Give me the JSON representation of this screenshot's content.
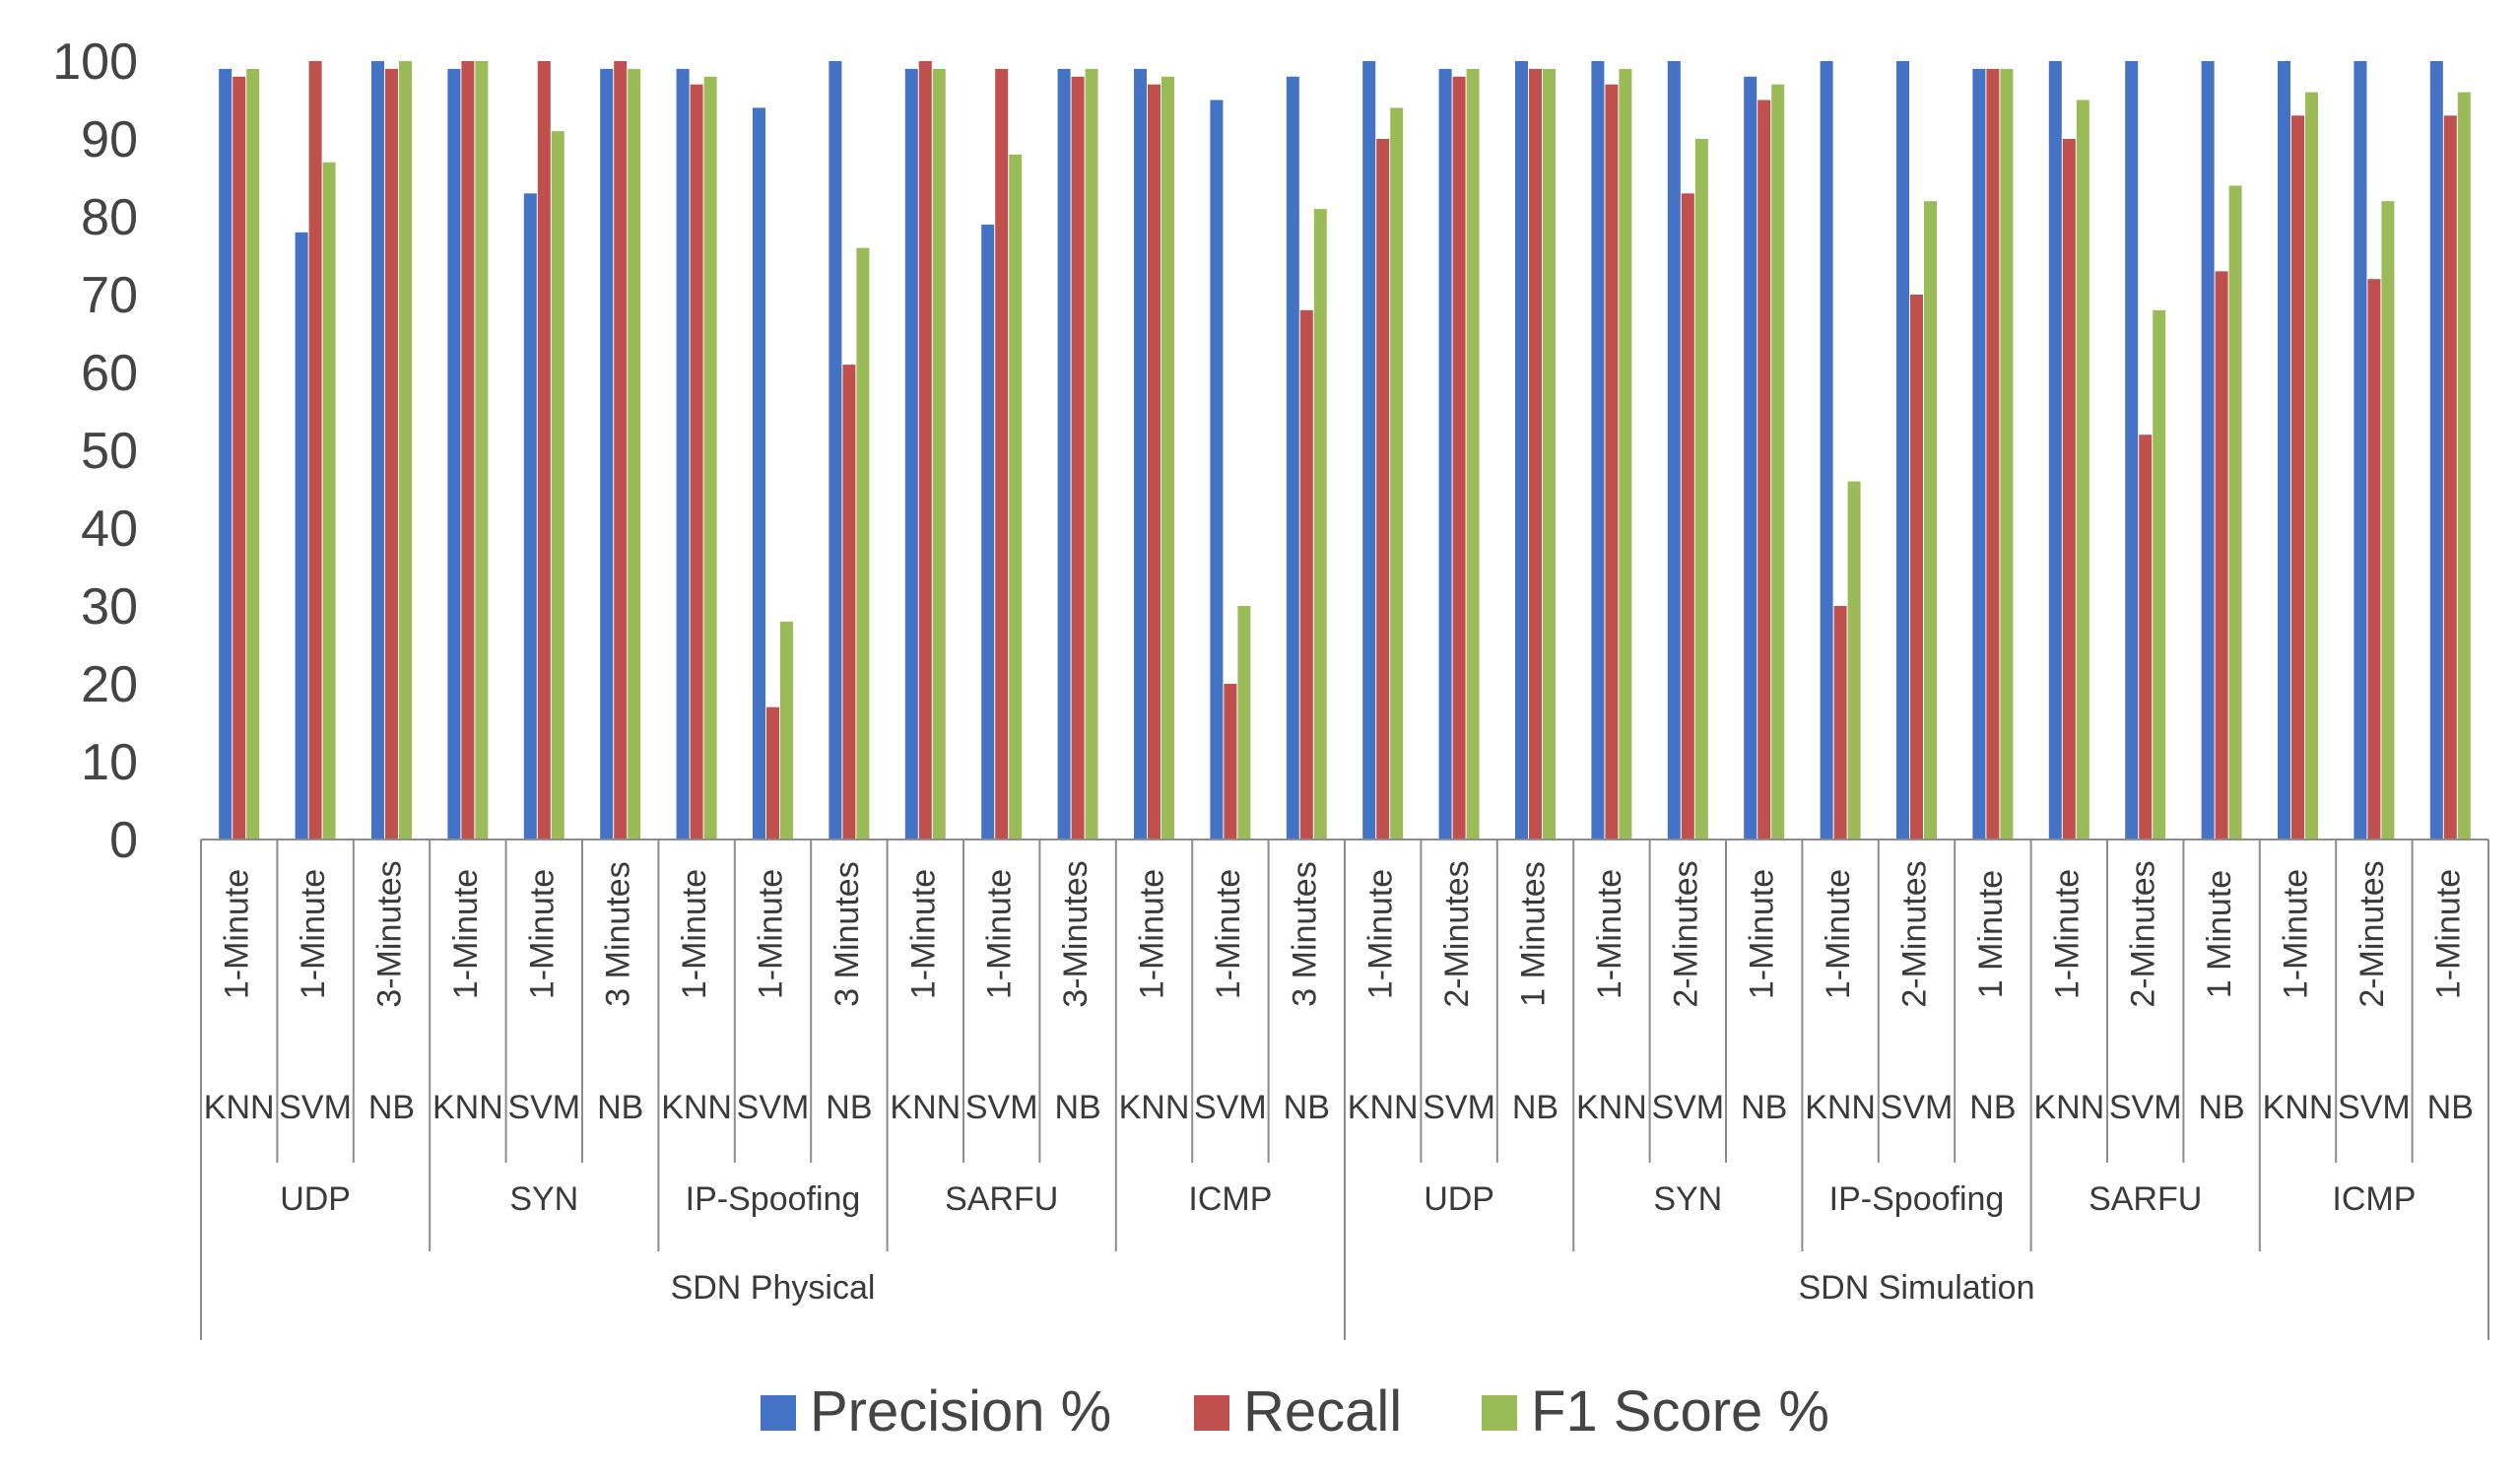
{
  "chart_data": {
    "type": "bar",
    "title": "",
    "xlabel": "",
    "ylabel": "",
    "ylim": [
      0,
      100
    ],
    "yticks": [
      0,
      10,
      20,
      30,
      40,
      50,
      60,
      70,
      80,
      90,
      100
    ],
    "grid": false,
    "legend_position": "bottom",
    "categories": [
      {
        "env": "SDN Physical",
        "attack": "UDP",
        "algo": "KNN",
        "window": "1-Minute"
      },
      {
        "env": "SDN Physical",
        "attack": "UDP",
        "algo": "SVM",
        "window": "1-Minute"
      },
      {
        "env": "SDN Physical",
        "attack": "UDP",
        "algo": "NB",
        "window": "3-Minutes"
      },
      {
        "env": "SDN Physical",
        "attack": "SYN",
        "algo": "KNN",
        "window": "1-Minute"
      },
      {
        "env": "SDN Physical",
        "attack": "SYN",
        "algo": "SVM",
        "window": "1-Minute"
      },
      {
        "env": "SDN Physical",
        "attack": "SYN",
        "algo": "NB",
        "window": "3 Minutes"
      },
      {
        "env": "SDN Physical",
        "attack": "IP-Spoofing",
        "algo": "KNN",
        "window": "1-Minute"
      },
      {
        "env": "SDN Physical",
        "attack": "IP-Spoofing",
        "algo": "SVM",
        "window": "1-Minute"
      },
      {
        "env": "SDN Physical",
        "attack": "IP-Spoofing",
        "algo": "NB",
        "window": "3 Minutes"
      },
      {
        "env": "SDN Physical",
        "attack": "SARFU",
        "algo": "KNN",
        "window": "1-Minute"
      },
      {
        "env": "SDN Physical",
        "attack": "SARFU",
        "algo": "SVM",
        "window": "1-Minute"
      },
      {
        "env": "SDN Physical",
        "attack": "SARFU",
        "algo": "NB",
        "window": "3-Minutes"
      },
      {
        "env": "SDN Physical",
        "attack": "ICMP",
        "algo": "KNN",
        "window": "1-Minute"
      },
      {
        "env": "SDN Physical",
        "attack": "ICMP",
        "algo": "SVM",
        "window": "1-Minute"
      },
      {
        "env": "SDN Physical",
        "attack": "ICMP",
        "algo": "NB",
        "window": "3 Minutes"
      },
      {
        "env": "SDN Simulation",
        "attack": "UDP",
        "algo": "KNN",
        "window": "1-Minute"
      },
      {
        "env": "SDN Simulation",
        "attack": "UDP",
        "algo": "SVM",
        "window": "2-Minutes"
      },
      {
        "env": "SDN Simulation",
        "attack": "UDP",
        "algo": "NB",
        "window": "1 Minutes"
      },
      {
        "env": "SDN Simulation",
        "attack": "SYN",
        "algo": "KNN",
        "window": "1-Minute"
      },
      {
        "env": "SDN Simulation",
        "attack": "SYN",
        "algo": "SVM",
        "window": "2-Minutes"
      },
      {
        "env": "SDN Simulation",
        "attack": "SYN",
        "algo": "NB",
        "window": "1-Minute"
      },
      {
        "env": "SDN Simulation",
        "attack": "IP-Spoofing",
        "algo": "KNN",
        "window": "1-Minute"
      },
      {
        "env": "SDN Simulation",
        "attack": "IP-Spoofing",
        "algo": "SVM",
        "window": "2-Minutes"
      },
      {
        "env": "SDN Simulation",
        "attack": "IP-Spoofing",
        "algo": "NB",
        "window": "1 Minute"
      },
      {
        "env": "SDN Simulation",
        "attack": "SARFU",
        "algo": "KNN",
        "window": "1-Minute"
      },
      {
        "env": "SDN Simulation",
        "attack": "SARFU",
        "algo": "SVM",
        "window": "2-Minutes"
      },
      {
        "env": "SDN Simulation",
        "attack": "SARFU",
        "algo": "NB",
        "window": "1 Minute"
      },
      {
        "env": "SDN Simulation",
        "attack": "ICMP",
        "algo": "KNN",
        "window": "1-Minute"
      },
      {
        "env": "SDN Simulation",
        "attack": "ICMP",
        "algo": "SVM",
        "window": "2-Minutes"
      },
      {
        "env": "SDN Simulation",
        "attack": "ICMP",
        "algo": "NB",
        "window": "1-Minute"
      }
    ],
    "series": [
      {
        "name": "Precision %",
        "color": "#4472C4",
        "values": [
          99,
          78,
          100,
          99,
          83,
          99,
          99,
          94,
          100,
          99,
          79,
          99,
          99,
          95,
          98,
          100,
          99,
          100,
          100,
          100,
          98,
          100,
          100,
          99,
          100,
          100,
          100,
          100,
          100,
          100
        ]
      },
      {
        "name": "Recall",
        "color": "#C0504D",
        "values": [
          98,
          100,
          99,
          100,
          100,
          100,
          97,
          17,
          61,
          100,
          99,
          98,
          97,
          20,
          68,
          90,
          98,
          99,
          97,
          83,
          95,
          30,
          70,
          99,
          90,
          52,
          73,
          93,
          72,
          93
        ]
      },
      {
        "name": "F1 Score %",
        "color": "#9BBB59",
        "values": [
          99,
          87,
          100,
          100,
          91,
          99,
          98,
          28,
          76,
          99,
          88,
          99,
          98,
          30,
          81,
          94,
          99,
          99,
          99,
          90,
          97,
          46,
          82,
          99,
          95,
          68,
          84,
          96,
          82,
          96
        ]
      }
    ]
  }
}
